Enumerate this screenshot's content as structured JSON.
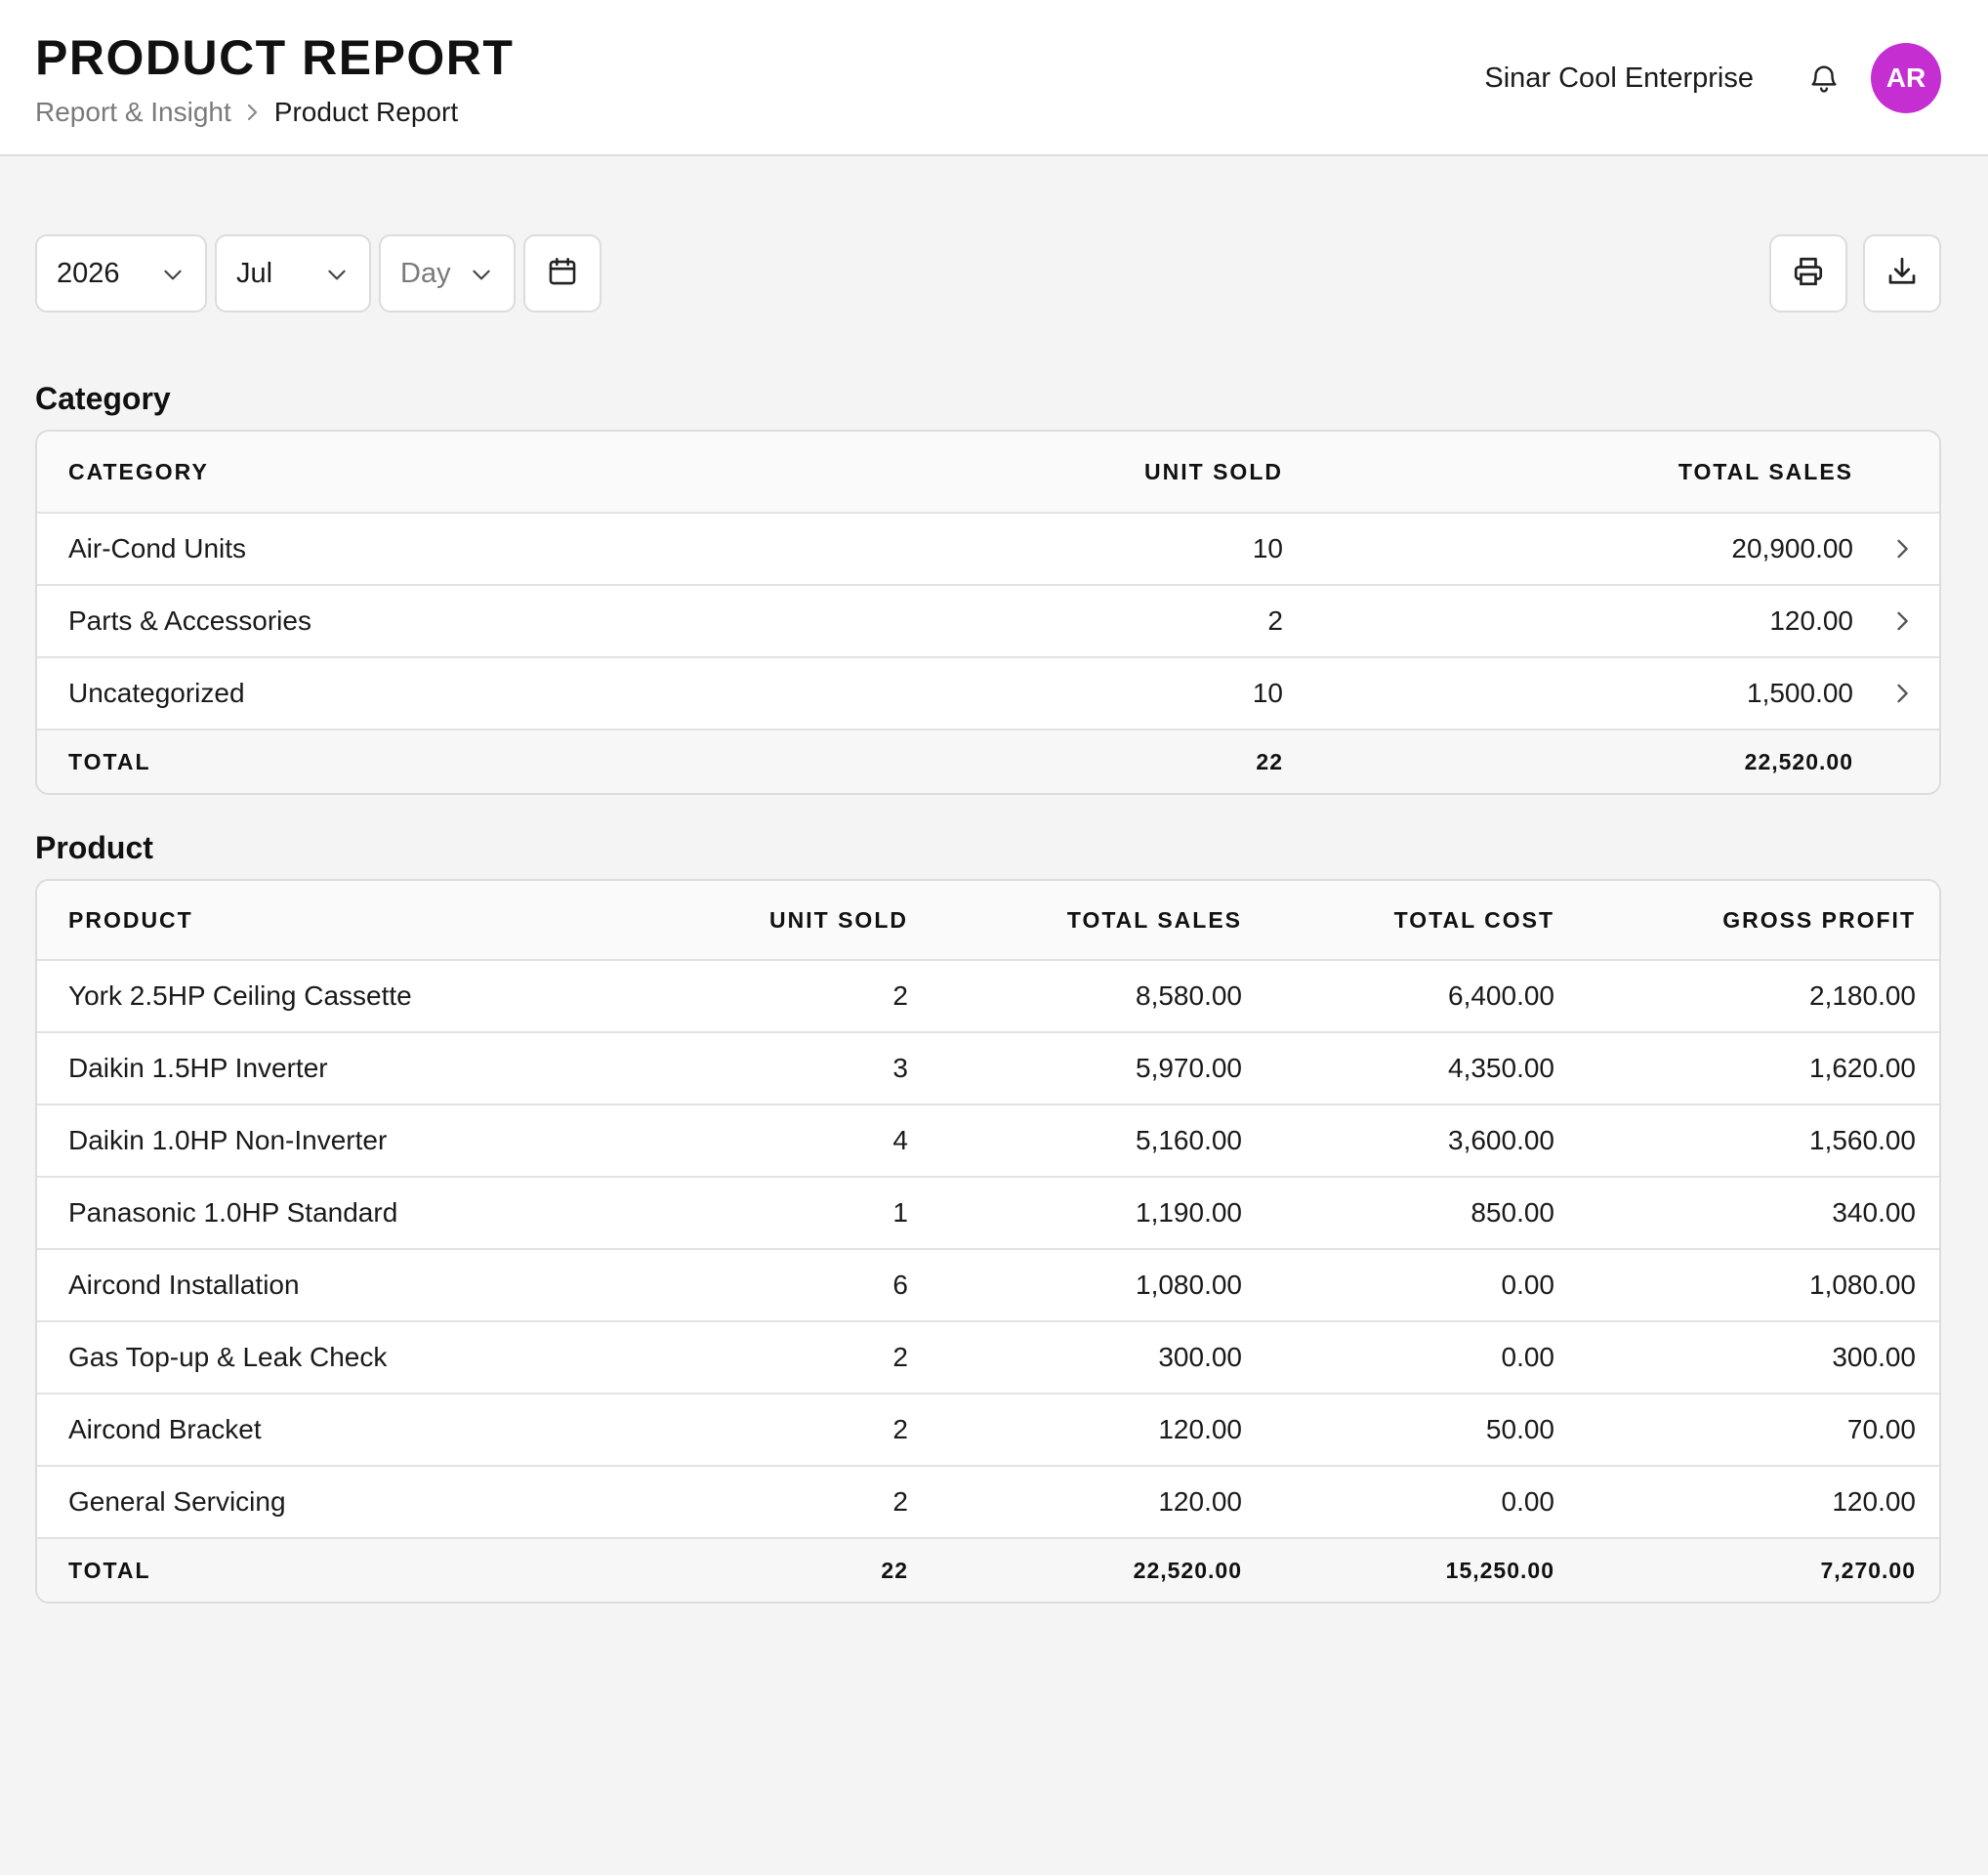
{
  "header": {
    "title": "PRODUCT REPORT",
    "breadcrumb": {
      "parent": "Report & Insight",
      "current": "Product Report"
    },
    "company": "Sinar Cool Enterprise",
    "avatar_initials": "AR",
    "avatar_color": "#c52fd1"
  },
  "filters": {
    "year": "2026",
    "month": "Jul",
    "day_placeholder": "Day"
  },
  "category": {
    "title": "Category",
    "columns": [
      "CATEGORY",
      "UNIT SOLD",
      "TOTAL SALES"
    ],
    "rows": [
      [
        "Air-Cond Units",
        "10",
        "20,900.00"
      ],
      [
        "Parts & Accessories",
        "2",
        "120.00"
      ],
      [
        "Uncategorized",
        "10",
        "1,500.00"
      ]
    ],
    "total": [
      "TOTAL",
      "22",
      "22,520.00"
    ]
  },
  "product": {
    "title": "Product",
    "columns": [
      "PRODUCT",
      "UNIT SOLD",
      "TOTAL SALES",
      "TOTAL COST",
      "GROSS PROFIT"
    ],
    "rows": [
      [
        "York 2.5HP Ceiling Cassette",
        "2",
        "8,580.00",
        "6,400.00",
        "2,180.00"
      ],
      [
        "Daikin 1.5HP Inverter",
        "3",
        "5,970.00",
        "4,350.00",
        "1,620.00"
      ],
      [
        "Daikin 1.0HP Non-Inverter",
        "4",
        "5,160.00",
        "3,600.00",
        "1,560.00"
      ],
      [
        "Panasonic 1.0HP Standard",
        "1",
        "1,190.00",
        "850.00",
        "340.00"
      ],
      [
        "Aircond Installation",
        "6",
        "1,080.00",
        "0.00",
        "1,080.00"
      ],
      [
        "Gas Top-up & Leak Check",
        "2",
        "300.00",
        "0.00",
        "300.00"
      ],
      [
        "Aircond Bracket",
        "2",
        "120.00",
        "50.00",
        "70.00"
      ],
      [
        "General Servicing",
        "2",
        "120.00",
        "0.00",
        "120.00"
      ]
    ],
    "total": [
      "TOTAL",
      "22",
      "22,520.00",
      "15,250.00",
      "7,270.00"
    ]
  }
}
